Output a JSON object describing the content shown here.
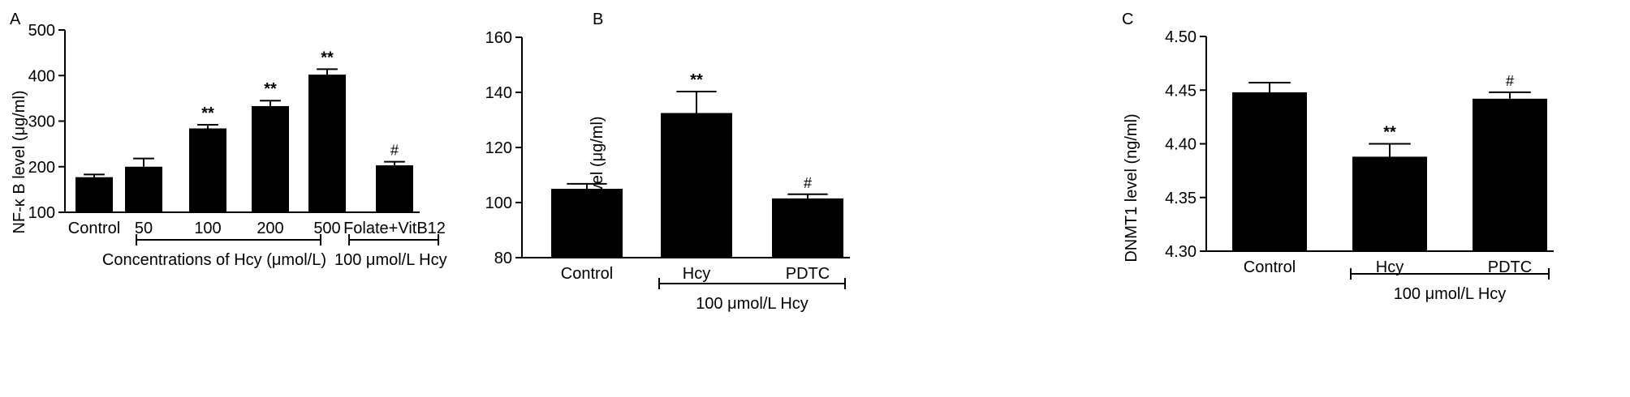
{
  "colors": {
    "bar": "#000000",
    "axis": "#000000",
    "background": "#ffffff"
  },
  "chart_data": [
    {
      "panel": "A",
      "type": "bar",
      "ylabel": "NF-κ B level (μg/ml)",
      "ylim": [
        100,
        500
      ],
      "yticks": [
        "100",
        "200",
        "300",
        "400",
        "500"
      ],
      "categories": [
        "Control",
        "50",
        "100",
        "200",
        "500",
        "Folate+VitB12"
      ],
      "values": [
        177,
        200,
        284,
        333,
        402,
        203
      ],
      "errors": [
        6,
        18,
        8,
        12,
        12,
        8
      ],
      "annotations": [
        "",
        "",
        "**",
        "**",
        "**",
        "#"
      ],
      "groups": [
        {
          "label": "Concentrations of Hcy (μmol/L)",
          "from": 1,
          "to": 4
        },
        {
          "label": "100 μmol/L Hcy",
          "from": 5,
          "to": 5
        }
      ]
    },
    {
      "panel": "B",
      "type": "bar",
      "ylabel": "NF-κ B level (μg/ml)",
      "ylim": [
        80,
        160
      ],
      "yticks": [
        "80",
        "100",
        "120",
        "140",
        "160"
      ],
      "categories": [
        "Control",
        "Hcy",
        "PDTC"
      ],
      "values": [
        105,
        132.5,
        101.5
      ],
      "errors": [
        1.8,
        7.8,
        1.5
      ],
      "annotations": [
        "",
        "**",
        "#"
      ],
      "groups": [
        {
          "label": "100 μmol/L Hcy",
          "from": 1,
          "to": 2
        }
      ]
    },
    {
      "panel": "C",
      "type": "bar",
      "ylabel": "DNMT1 level (ng/ml)",
      "ylim": [
        4.3,
        4.5
      ],
      "yticks": [
        "4.30",
        "4.35",
        "4.40",
        "4.45",
        "4.50"
      ],
      "categories": [
        "Control",
        "Hcy",
        "PDTC"
      ],
      "values": [
        4.448,
        4.388,
        4.442
      ],
      "errors": [
        0.009,
        0.012,
        0.006
      ],
      "annotations": [
        "",
        "**",
        "#"
      ],
      "groups": [
        {
          "label": "100 μmol/L Hcy",
          "from": 1,
          "to": 2
        }
      ]
    }
  ]
}
